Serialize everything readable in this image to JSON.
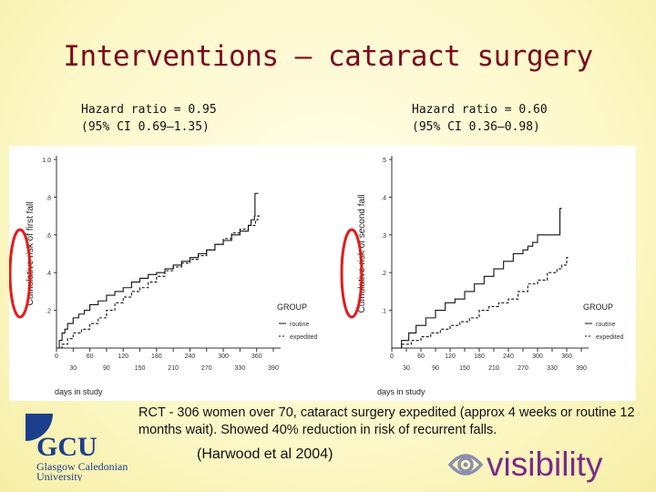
{
  "slide": {
    "title": "Interventions – cataract surgery",
    "caption": "RCT - 306 women over 70, cataract surgery expedited (approx 4 weeks or routine 12 months wait). Showed 40% reduction in risk of recurrent falls.",
    "citation": "(Harwood et al 2004)"
  },
  "logos": {
    "gcu": {
      "letters": "GCU",
      "line1": "Glasgow Caledonian",
      "line2": "University",
      "color": "#1c3f8c"
    },
    "visibility": {
      "text": "visibility",
      "color": "#7b2a8a"
    }
  },
  "colors": {
    "title": "#7a0a1e",
    "highlight": "#e31b1b"
  },
  "chart_data": [
    {
      "type": "line",
      "hazard_ratio_label": "Hazard ratio = 0.95",
      "ci_label": "(95% CI 0.69–1.35)",
      "xlabel": "days in study",
      "ylabel": "Cumulative risk of first fall",
      "xlim": [
        0,
        390
      ],
      "ylim": [
        0,
        1.0
      ],
      "x_ticks_top": [
        "0",
        "60",
        "120",
        "180",
        "240",
        "300",
        "360"
      ],
      "x_ticks_bottom": [
        "30",
        "90",
        "150",
        "210",
        "270",
        "330",
        "390"
      ],
      "y_ticks": [
        {
          "value": 0.2,
          "label": ".2"
        },
        {
          "value": 0.4,
          "label": ".4"
        },
        {
          "value": 0.6,
          "label": ".6"
        },
        {
          "value": 0.8,
          "label": ".8"
        },
        {
          "value": 1.0,
          "label": "1.0"
        }
      ],
      "legend_title": "GROUP",
      "series": [
        {
          "name": "routine",
          "style": "solid",
          "x": [
            0,
            5,
            10,
            15,
            20,
            30,
            40,
            50,
            60,
            75,
            90,
            105,
            120,
            135,
            150,
            165,
            180,
            195,
            210,
            225,
            240,
            255,
            270,
            285,
            300,
            315,
            330,
            345,
            350,
            356,
            357,
            363
          ],
          "y": [
            0,
            0.04,
            0.08,
            0.1,
            0.13,
            0.16,
            0.18,
            0.2,
            0.23,
            0.25,
            0.28,
            0.3,
            0.32,
            0.35,
            0.37,
            0.39,
            0.4,
            0.42,
            0.44,
            0.46,
            0.48,
            0.5,
            0.52,
            0.55,
            0.57,
            0.6,
            0.62,
            0.65,
            0.68,
            0.7,
            0.82,
            0.82
          ]
        },
        {
          "name": "expedited",
          "style": "dashed",
          "x": [
            0,
            10,
            20,
            30,
            45,
            60,
            75,
            90,
            105,
            120,
            135,
            150,
            165,
            180,
            195,
            210,
            225,
            240,
            255,
            270,
            285,
            300,
            315,
            330,
            345,
            358,
            362,
            366
          ],
          "y": [
            0,
            0.02,
            0.05,
            0.08,
            0.1,
            0.13,
            0.16,
            0.2,
            0.24,
            0.27,
            0.3,
            0.32,
            0.35,
            0.38,
            0.41,
            0.43,
            0.45,
            0.47,
            0.49,
            0.52,
            0.55,
            0.58,
            0.61,
            0.63,
            0.65,
            0.68,
            0.7,
            0.7
          ]
        }
      ]
    },
    {
      "type": "line",
      "hazard_ratio_label": "Hazard ratio = 0.60",
      "ci_label": "(95% CI 0.36–0.98)",
      "xlabel": "days in study",
      "ylabel": "Cumulative risk of second fall",
      "xlim": [
        0,
        390
      ],
      "ylim": [
        0,
        0.5
      ],
      "x_ticks_top": [
        "0",
        "60",
        "120",
        "180",
        "240",
        "300",
        "360"
      ],
      "x_ticks_bottom": [
        "30",
        "90",
        "150",
        "210",
        "270",
        "330",
        "390"
      ],
      "y_ticks": [
        {
          "value": 0.1,
          "label": ".1"
        },
        {
          "value": 0.2,
          "label": ".2"
        },
        {
          "value": 0.3,
          "label": ".3"
        },
        {
          "value": 0.4,
          "label": ".4"
        },
        {
          "value": 0.5,
          "label": ".5"
        }
      ],
      "legend_title": "GROUP",
      "series": [
        {
          "name": "routine",
          "style": "solid",
          "x": [
            0,
            20,
            35,
            50,
            70,
            90,
            110,
            130,
            150,
            170,
            190,
            210,
            230,
            250,
            270,
            280,
            290,
            300,
            340,
            346,
            350
          ],
          "y": [
            0,
            0.02,
            0.04,
            0.06,
            0.08,
            0.1,
            0.12,
            0.13,
            0.15,
            0.17,
            0.19,
            0.21,
            0.23,
            0.25,
            0.26,
            0.27,
            0.28,
            0.3,
            0.3,
            0.37,
            0.37
          ]
        },
        {
          "name": "expedited",
          "style": "dashed",
          "x": [
            0,
            20,
            40,
            60,
            80,
            100,
            120,
            140,
            160,
            180,
            200,
            220,
            240,
            260,
            280,
            300,
            320,
            340,
            350,
            360,
            366
          ],
          "y": [
            0,
            0.01,
            0.02,
            0.03,
            0.04,
            0.05,
            0.06,
            0.07,
            0.08,
            0.1,
            0.11,
            0.12,
            0.13,
            0.15,
            0.17,
            0.18,
            0.2,
            0.21,
            0.22,
            0.24,
            0.24
          ]
        }
      ]
    }
  ]
}
